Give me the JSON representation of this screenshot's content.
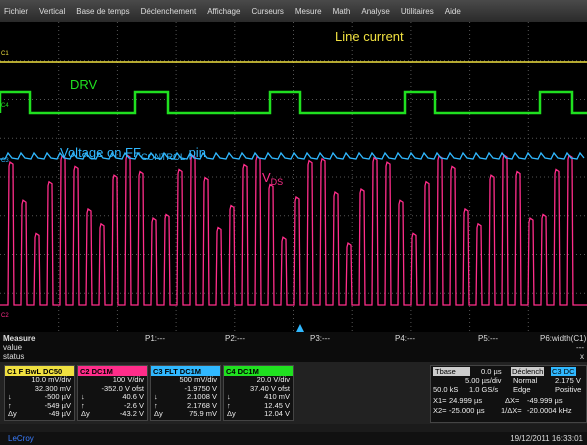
{
  "menu": [
    "Fichier",
    "Vertical",
    "Base de temps",
    "Déclenchement",
    "Affichage",
    "Curseurs",
    "Mesure",
    "Math",
    "Analyse",
    "Utilitaires",
    "Aide"
  ],
  "annotations": {
    "line_current": "Line current",
    "drv": "DRV",
    "ff_prefix": "Voltage on FF",
    "ff_sub": "CONTROL",
    "ff_suffix": " pin",
    "vds_main": "V",
    "vds_sub": "DS"
  },
  "trace_labels": [
    "C1",
    "C4",
    "C3",
    "C2"
  ],
  "measure": {
    "title": "Measure",
    "row_labels": [
      "value",
      "status"
    ],
    "params": [
      "P1:---",
      "P2:---",
      "P3:---",
      "P4:---",
      "P5:---",
      "P6:width(C1)"
    ],
    "p6_value": "---",
    "close": "x"
  },
  "channels": [
    {
      "header": [
        "C1",
        "F",
        "BwL",
        "DC50"
      ],
      "lines": [
        "10.0 mV/div",
        "32.300 mV"
      ],
      "rows": [
        [
          "↓",
          "-500 µV"
        ],
        [
          "↑",
          "-549 µV"
        ],
        [
          "Δy",
          "-49 µV"
        ]
      ]
    },
    {
      "header": [
        "C2",
        "DC1M"
      ],
      "lines": [
        "100 V/div",
        "-352.0 V ofst"
      ],
      "rows": [
        [
          "↓",
          "40.6 V"
        ],
        [
          "↑",
          "-2.6 V"
        ],
        [
          "Δy",
          "-43.2 V"
        ]
      ]
    },
    {
      "header": [
        "C3",
        "FLT",
        "DC1M"
      ],
      "lines": [
        "500 mV/div",
        "-1.9750 V"
      ],
      "rows": [
        [
          "↓",
          "2.1008 V"
        ],
        [
          "↑",
          "2.1768 V"
        ],
        [
          "Δy",
          "75.9 mV"
        ]
      ]
    },
    {
      "header": [
        "C4",
        "DC1M"
      ],
      "lines": [
        "20.0 V/div",
        "37.40 V ofst"
      ],
      "rows": [
        [
          "↓",
          "410 mV"
        ],
        [
          "↑",
          "12.45 V"
        ],
        [
          "Δy",
          "12.04 V"
        ]
      ]
    }
  ],
  "timebase": {
    "header": [
      "Tbase",
      "0.0 µs"
    ],
    "rows": [
      [
        "5.00 µs/div"
      ],
      [
        "50.0 kS",
        "1.0 GS/s"
      ]
    ]
  },
  "trigger": {
    "header": [
      "Déclench",
      "C3 DC"
    ],
    "rows": [
      [
        "Normal",
        "2.175 V"
      ],
      [
        "Edge",
        "Positive"
      ]
    ]
  },
  "cursors": [
    [
      "X1=",
      "24.999 µs",
      "ΔX=",
      "-49.999 µs"
    ],
    [
      "X2=",
      "-25.000 µs",
      "1/ΔX=",
      "-20.0004 kHz"
    ]
  ],
  "status": {
    "brand": "LeCroy",
    "datetime": "19/12/2011 16:33:01"
  }
}
